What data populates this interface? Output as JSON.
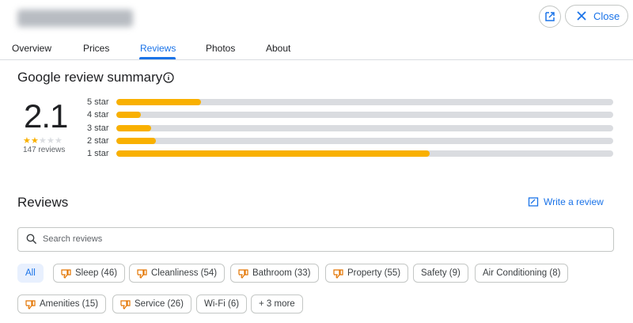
{
  "header": {
    "close": "Close"
  },
  "tabs": [
    "Overview",
    "Prices",
    "Reviews",
    "Photos",
    "About"
  ],
  "summary": {
    "title": "Google review summary",
    "rating": "2.1",
    "review_count": "147 reviews",
    "distribution": [
      {
        "label": "5 star",
        "value": 17
      },
      {
        "label": "4 star",
        "value": 5
      },
      {
        "label": "3 star",
        "value": 7
      },
      {
        "label": "2 star",
        "value": 8
      },
      {
        "label": "1 star",
        "value": 63
      }
    ]
  },
  "reviews": {
    "title": "Reviews",
    "write": "Write a review",
    "search_placeholder": "Search reviews",
    "chips": [
      "All",
      "Sleep (46)",
      "Cleanliness (54)",
      "Bathroom (33)",
      "Property (55)",
      "Safety (9)",
      "Air Conditioning (8)",
      "Amenities (15)",
      "Service (26)",
      "Wi-Fi (6)",
      "+ 3 more"
    ]
  }
}
